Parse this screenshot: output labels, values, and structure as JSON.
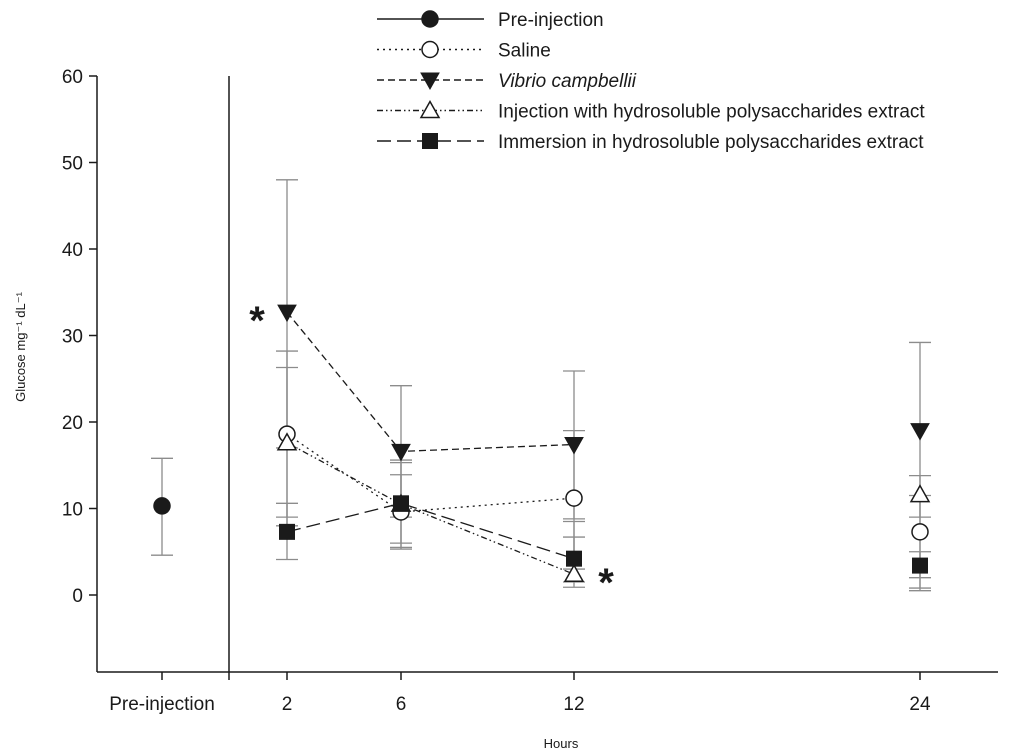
{
  "chart_data": {
    "type": "line",
    "ylabel": "Glucose mg⁻¹ dL⁻¹",
    "xlabel": "Hours",
    "ylim": [
      -9,
      60
    ],
    "y_ticks": [
      0,
      10,
      20,
      30,
      40,
      50,
      60
    ],
    "categories": [
      "Pre-injection",
      "2",
      "6",
      "12",
      "24"
    ],
    "legend_position": "top",
    "grid": false,
    "colors": {
      "line": "#1a1a1a",
      "error_bar": "#8c8c8c"
    },
    "series": [
      {
        "name": "Pre-injection",
        "line": "solid",
        "marker": "circle-filled",
        "points": [
          {
            "x": "Pre-injection",
            "y": 10.3,
            "lo": 4.6,
            "hi": 15.8
          }
        ]
      },
      {
        "name": "Saline",
        "line": "dotted",
        "marker": "circle-open",
        "points": [
          {
            "x": "2",
            "y": 18.6,
            "lo": 8.0,
            "hi": 28.2
          },
          {
            "x": "6",
            "y": 9.6,
            "lo": 5.5,
            "hi": 13.9
          },
          {
            "x": "12",
            "y": 11.2,
            "lo": 3.0,
            "hi": 19.0
          },
          {
            "x": "24",
            "y": 7.3,
            "lo": 2.0,
            "hi": 11.5
          }
        ]
      },
      {
        "name": "Vibrio campbellii",
        "line": "dashed",
        "marker": "triangle-down-filled",
        "italic": true,
        "points": [
          {
            "x": "2",
            "y": 32.7,
            "lo": 17.0,
            "hi": 48.0
          },
          {
            "x": "6",
            "y": 16.6,
            "lo": 9.0,
            "hi": 24.2
          },
          {
            "x": "12",
            "y": 17.4,
            "lo": 8.8,
            "hi": 25.9
          },
          {
            "x": "24",
            "y": 19.0,
            "lo": 9.0,
            "hi": 29.2
          }
        ]
      },
      {
        "name": "Injection with hydrosoluble polysaccharides extract",
        "line": "dash-dot-dot",
        "marker": "triangle-up-open",
        "points": [
          {
            "x": "2",
            "y": 17.6,
            "lo": 9.0,
            "hi": 26.3
          },
          {
            "x": "6",
            "y": 10.5,
            "lo": 5.3,
            "hi": 15.6
          },
          {
            "x": "12",
            "y": 2.4,
            "lo": 0.9,
            "hi": 6.7
          },
          {
            "x": "24",
            "y": 11.6,
            "lo": 0.5,
            "hi": 13.8
          }
        ]
      },
      {
        "name": "Immersion in hydrosoluble polysaccharides extract",
        "line": "long-dash",
        "marker": "square-filled",
        "points": [
          {
            "x": "2",
            "y": 7.3,
            "lo": 4.1,
            "hi": 10.6
          },
          {
            "x": "6",
            "y": 10.6,
            "lo": 6.0,
            "hi": 15.3
          },
          {
            "x": "12",
            "y": 4.2,
            "lo": 1.5,
            "hi": 8.5
          },
          {
            "x": "24",
            "y": 3.4,
            "lo": 0.8,
            "hi": 5.0
          }
        ]
      }
    ],
    "annotations": [
      {
        "text": "*",
        "x": "2",
        "y": 32.7,
        "side": "left"
      },
      {
        "text": "*",
        "x": "12",
        "y": 2.4,
        "side": "right"
      }
    ]
  }
}
